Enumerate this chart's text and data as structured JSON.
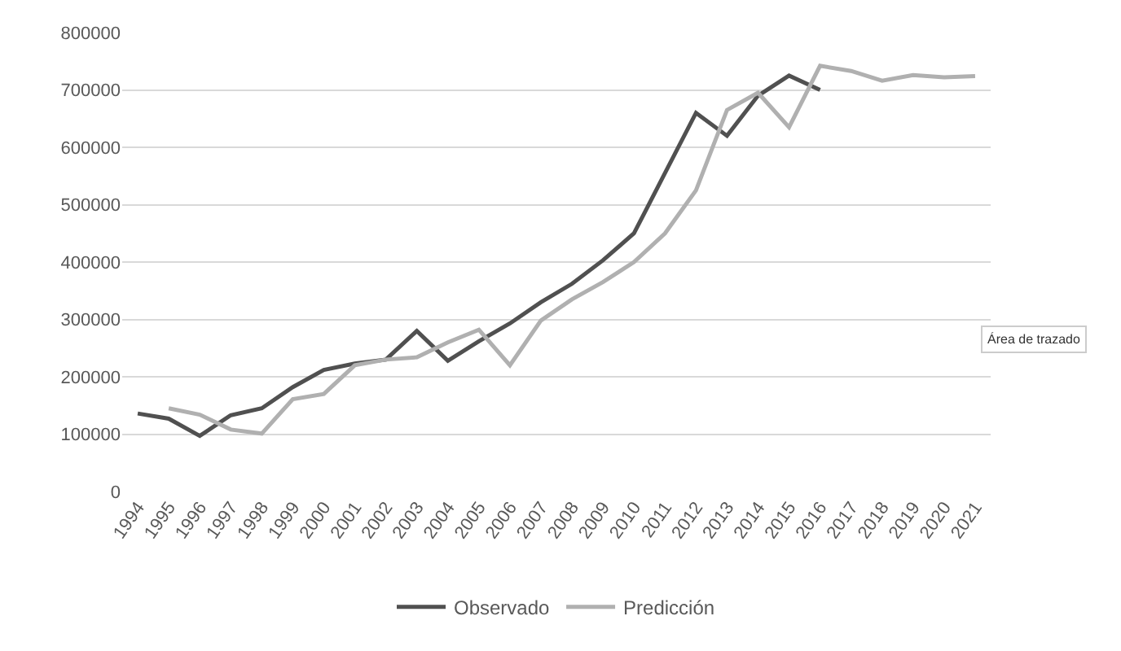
{
  "chart_data": {
    "type": "line",
    "categories": [
      "1994",
      "1995",
      "1996",
      "1997",
      "1998",
      "1999",
      "2000",
      "2001",
      "2002",
      "2003",
      "2004",
      "2005",
      "2006",
      "2007",
      "2008",
      "2009",
      "2010",
      "2011",
      "2012",
      "2013",
      "2014",
      "2015",
      "2016",
      "2017",
      "2018",
      "2019",
      "2020",
      "2021"
    ],
    "series": [
      {
        "name": "Observado",
        "color": "#505050",
        "values": [
          136000,
          127000,
          97000,
          133000,
          145000,
          182000,
          212000,
          223000,
          230000,
          280000,
          228000,
          262000,
          293000,
          330000,
          362000,
          403000,
          450000,
          555000,
          660000,
          620000,
          690000,
          725000,
          700000,
          null,
          null,
          null,
          null,
          null
        ]
      },
      {
        "name": "Predicción",
        "color": "#b0b0b0",
        "values": [
          null,
          145000,
          134000,
          108000,
          101000,
          161000,
          170000,
          220000,
          230000,
          234000,
          260000,
          282000,
          220000,
          298000,
          335000,
          365000,
          400000,
          450000,
          525000,
          665000,
          695000,
          635000,
          742000,
          733000,
          716000,
          726000,
          722000,
          724000
        ]
      }
    ],
    "ylim": [
      0,
      800000
    ],
    "yticks": [
      0,
      100000,
      200000,
      300000,
      400000,
      500000,
      600000,
      700000,
      800000
    ],
    "grid": "y",
    "legend": "bottom",
    "marker": "none",
    "line_style": "solid",
    "annotations": [
      "Área de trazado"
    ]
  }
}
